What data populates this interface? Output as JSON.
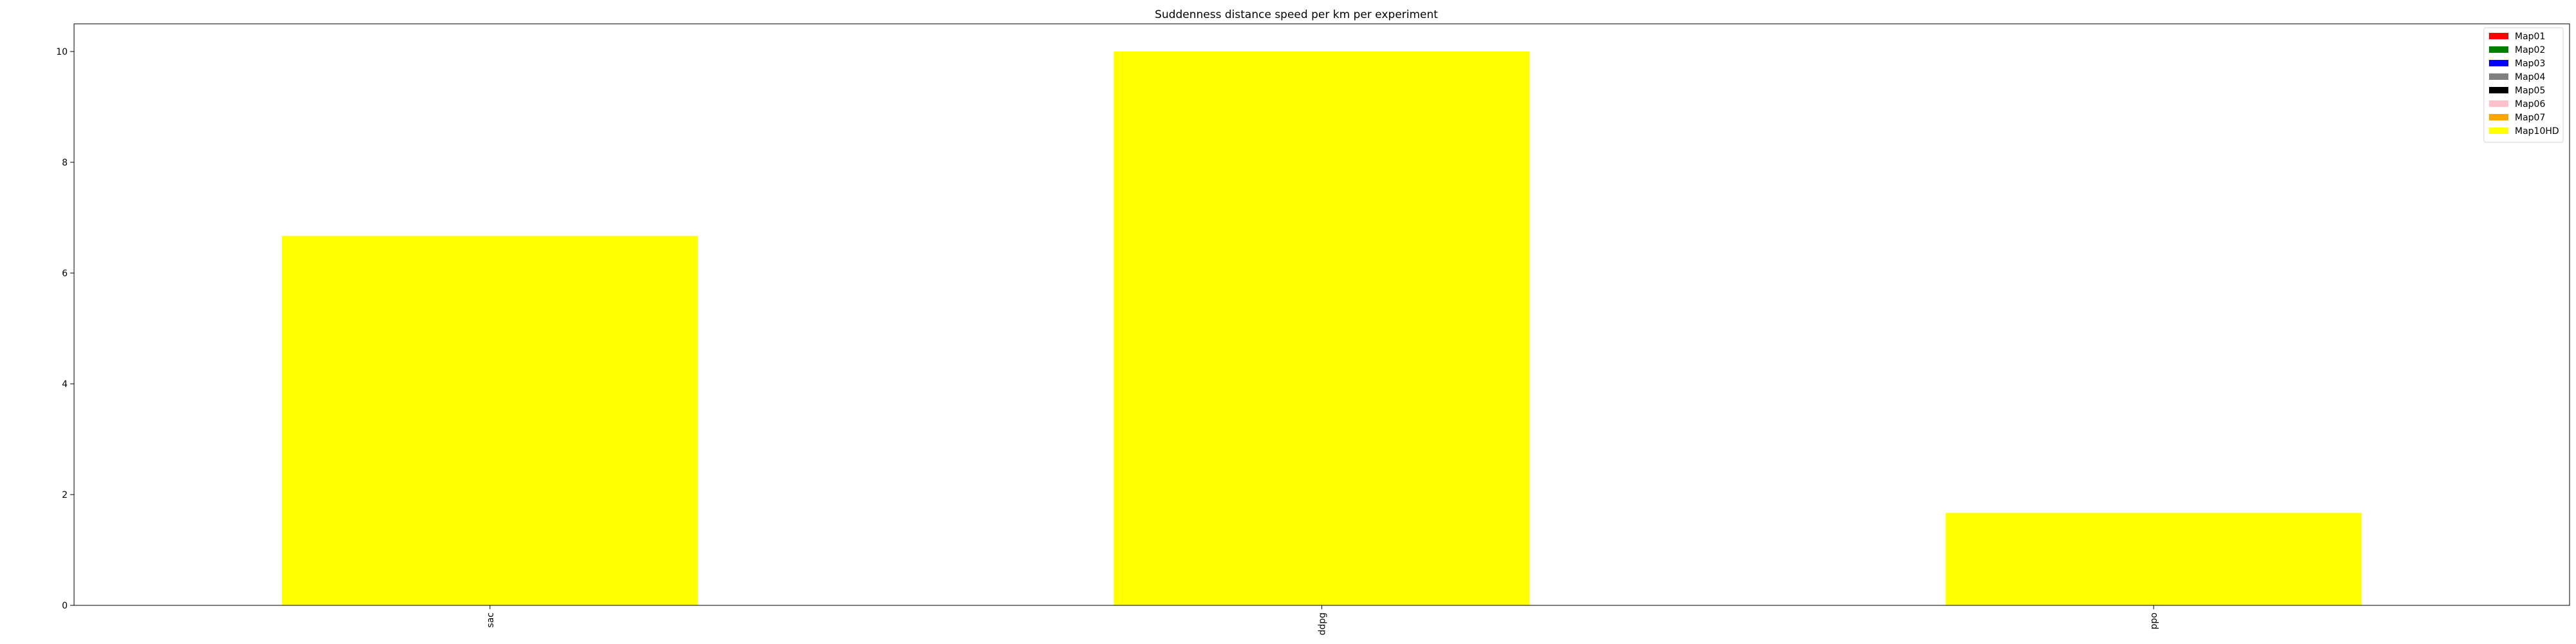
{
  "chart_data": {
    "type": "bar",
    "title": "Suddenness distance speed per km per experiment",
    "xlabel": "",
    "ylabel": "",
    "categories": [
      "sac",
      "ddpg",
      "ppo"
    ],
    "series": [
      {
        "name": "Map01",
        "color": "#ff0000",
        "values": [
          0,
          0,
          0
        ]
      },
      {
        "name": "Map02",
        "color": "#008000",
        "values": [
          0,
          0,
          0
        ]
      },
      {
        "name": "Map03",
        "color": "#0000ff",
        "values": [
          0,
          0,
          0
        ]
      },
      {
        "name": "Map04",
        "color": "#808080",
        "values": [
          0,
          0,
          0
        ]
      },
      {
        "name": "Map05",
        "color": "#000000",
        "values": [
          0,
          0,
          0
        ]
      },
      {
        "name": "Map06",
        "color": "#ffc0cb",
        "values": [
          0,
          0,
          0
        ]
      },
      {
        "name": "Map07",
        "color": "#ffa500",
        "values": [
          0,
          0,
          0
        ]
      },
      {
        "name": "Map10HD",
        "color": "#ffff00",
        "values": [
          6.67,
          10.0,
          1.67
        ]
      }
    ],
    "ylim": [
      0,
      10.5
    ],
    "yticks": [
      0,
      2,
      4,
      6,
      8,
      10
    ],
    "stacked": true,
    "grid": false,
    "legend_position": "top-right"
  }
}
